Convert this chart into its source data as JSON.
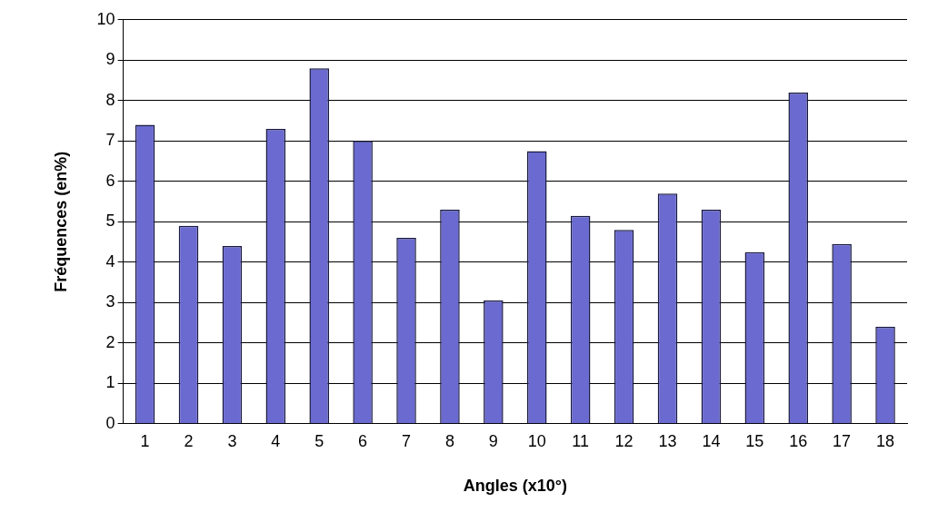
{
  "chart_data": {
    "type": "bar",
    "xlabel": "Angles (x10°)",
    "ylabel": "Fréquences (en%)",
    "categories": [
      "1",
      "2",
      "3",
      "4",
      "5",
      "6",
      "7",
      "8",
      "9",
      "10",
      "11",
      "12",
      "13",
      "14",
      "15",
      "16",
      "17",
      "18"
    ],
    "values": [
      7.4,
      4.9,
      4.4,
      7.3,
      8.8,
      7.0,
      4.6,
      5.3,
      3.05,
      6.75,
      5.15,
      4.8,
      5.7,
      5.3,
      4.25,
      8.2,
      4.45,
      2.4
    ],
    "color": "#6a6ad0",
    "ylim": [
      0,
      10
    ],
    "yticks": [
      0,
      1,
      2,
      3,
      4,
      5,
      6,
      7,
      8,
      9,
      10
    ],
    "grid": "y",
    "legend": false
  }
}
